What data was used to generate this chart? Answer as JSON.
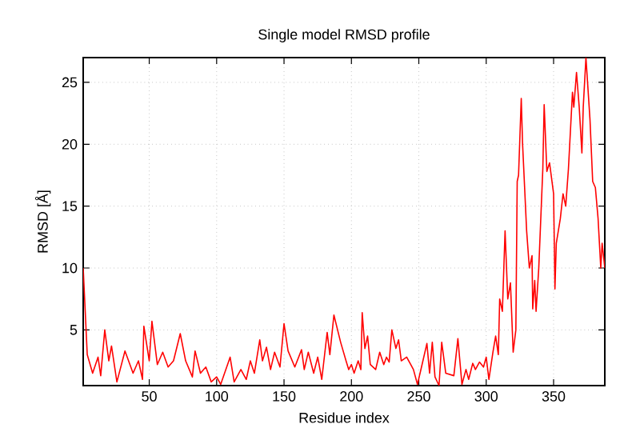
{
  "chart_data": {
    "type": "line",
    "title": "Single model RMSD profile",
    "xlabel": "Residue index",
    "ylabel": "RMSD [Å]",
    "xlim": [
      1,
      388
    ],
    "ylim": [
      0.5,
      27
    ],
    "xticks": [
      50,
      100,
      150,
      200,
      250,
      300,
      350
    ],
    "yticks": [
      5,
      10,
      15,
      20,
      25
    ],
    "grid": true,
    "marker": "none",
    "line_style": "solid",
    "series": [
      {
        "color": "#ff0000",
        "x": [
          1,
          4,
          8,
          12,
          14,
          17,
          20,
          22,
          26,
          32,
          38,
          42,
          45,
          46,
          50,
          52,
          56,
          60,
          64,
          68,
          73,
          77,
          82,
          84,
          88,
          92,
          96,
          100,
          103,
          110,
          113,
          118,
          122,
          125,
          128,
          132,
          134,
          137,
          140,
          143,
          147,
          150,
          153,
          158,
          163,
          165,
          168,
          172,
          175,
          178,
          182,
          184,
          187,
          192,
          196,
          198,
          200,
          202,
          205,
          207,
          208,
          210,
          212,
          214,
          218,
          221,
          224,
          226,
          228,
          230,
          233,
          235,
          237,
          241,
          244,
          246,
          249,
          252,
          256,
          258,
          260,
          262,
          265,
          267,
          270,
          276,
          279,
          282,
          285,
          287,
          290,
          292,
          295,
          298,
          300,
          302,
          305,
          307,
          309,
          310,
          312,
          314,
          316,
          318,
          320,
          322,
          323,
          324,
          326,
          327,
          330,
          332,
          334,
          334.5,
          336,
          337,
          339,
          342,
          343,
          345,
          347,
          350,
          351,
          352,
          355,
          357,
          359,
          361,
          364,
          365,
          367,
          369,
          371,
          372,
          374,
          377,
          379,
          381,
          383,
          385,
          386,
          388
        ],
        "values": [
          10,
          3,
          1.5,
          2.8,
          1.3,
          5,
          2.5,
          3.7,
          0.8,
          3.3,
          1.5,
          2.5,
          1,
          5.3,
          2.5,
          5.7,
          2.2,
          3.2,
          2,
          2.5,
          4.7,
          2.5,
          1.2,
          3.3,
          1.5,
          2,
          0.8,
          1.2,
          0.6,
          2.8,
          0.8,
          1.8,
          1,
          2.5,
          1.5,
          4.2,
          2.5,
          3.6,
          1.8,
          3.2,
          2,
          5.5,
          3.3,
          2,
          3.4,
          1.8,
          3.2,
          1.5,
          2.8,
          1,
          4.8,
          3,
          6.2,
          4,
          2.5,
          1.8,
          2.2,
          1.5,
          2.5,
          1.8,
          6.4,
          3.5,
          4.5,
          2.2,
          1.8,
          3.2,
          2.2,
          2.8,
          2.4,
          5,
          3.5,
          4.2,
          2.5,
          2.8,
          2.2,
          1.8,
          0.6,
          2,
          3.9,
          1.5,
          4,
          1.2,
          0.5,
          4,
          1.5,
          1.3,
          4.3,
          0.6,
          1.8,
          1,
          2.3,
          1.8,
          2.4,
          2,
          2.8,
          1,
          3.2,
          4.5,
          3,
          7.5,
          6.5,
          13,
          7.5,
          8.8,
          3.2,
          5,
          17,
          17.5,
          23.7,
          20,
          13,
          10,
          11,
          6.7,
          9,
          6.5,
          10,
          18,
          23.2,
          17.8,
          18.5,
          16,
          8.3,
          12,
          14,
          16,
          15,
          18,
          24.2,
          23,
          25.8,
          23,
          19.3,
          23,
          27,
          22,
          17,
          16.5,
          14,
          10,
          12,
          10
        ]
      }
    ]
  }
}
